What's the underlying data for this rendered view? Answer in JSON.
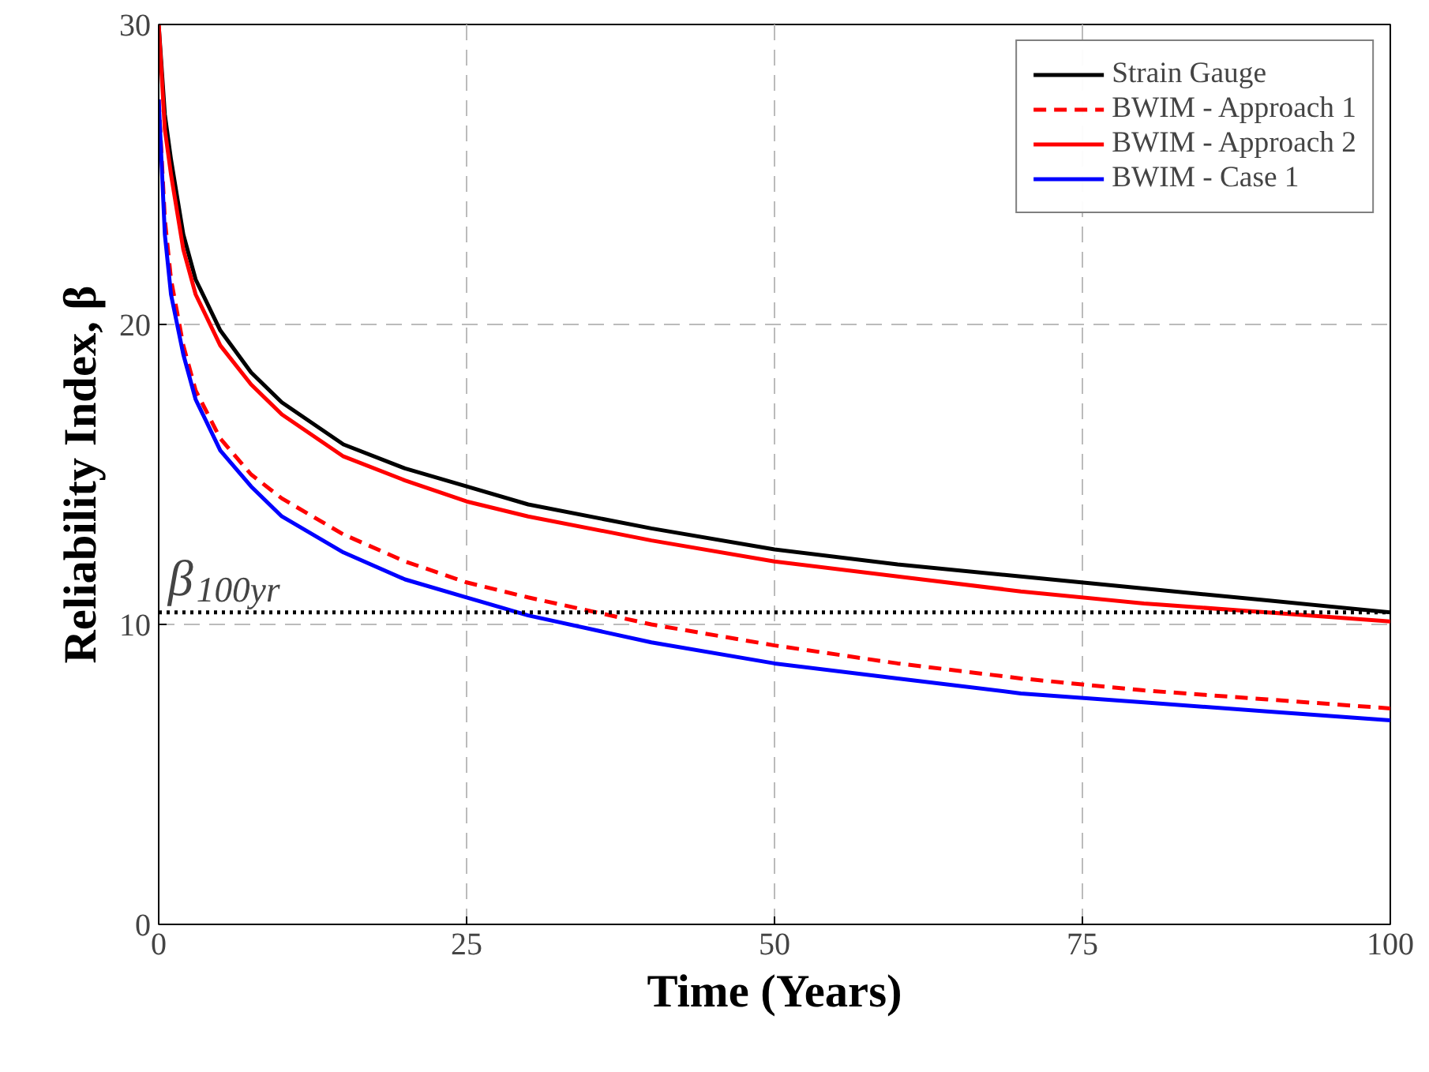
{
  "chart_data": {
    "type": "line",
    "xlabel": "Time (Years)",
    "ylabel": "Reliability Index, β",
    "x": [
      0,
      0.5,
      1,
      2,
      3,
      5,
      7.5,
      10,
      15,
      20,
      25,
      30,
      40,
      50,
      60,
      70,
      80,
      90,
      100
    ],
    "series": [
      {
        "name": "Strain Gauge",
        "color": "#000000",
        "line_style": "solid",
        "values": [
          30,
          27,
          25.5,
          23,
          21.5,
          19.8,
          18.4,
          17.4,
          16,
          15.2,
          14.6,
          14.0,
          13.2,
          12.5,
          12.0,
          11.6,
          11.2,
          10.8,
          10.4
        ]
      },
      {
        "name": "BWIM - Approach 1",
        "color": "#ff0000",
        "line_style": "dashed",
        "values": [
          27.5,
          23.5,
          21.5,
          19.3,
          17.8,
          16.2,
          15,
          14.2,
          13,
          12.1,
          11.4,
          10.9,
          10,
          9.3,
          8.7,
          8.2,
          7.8,
          7.5,
          7.2
        ]
      },
      {
        "name": "BWIM - Approach 2",
        "color": "#ff0000",
        "line_style": "solid",
        "values": [
          30,
          26.5,
          25,
          22.5,
          21,
          19.3,
          18,
          17,
          15.6,
          14.8,
          14.1,
          13.6,
          12.8,
          12.1,
          11.6,
          11.1,
          10.7,
          10.4,
          10.1
        ]
      },
      {
        "name": "BWIM - Case 1",
        "color": "#0000ff",
        "line_style": "solid",
        "values": [
          27.5,
          23,
          21,
          19,
          17.5,
          15.8,
          14.6,
          13.6,
          12.4,
          11.5,
          10.9,
          10.3,
          9.4,
          8.7,
          8.2,
          7.7,
          7.4,
          7.1,
          6.8
        ]
      }
    ],
    "xlim": [
      0,
      100
    ],
    "xticks": [
      0,
      25,
      50,
      75,
      100
    ],
    "ylim": [
      0,
      30
    ],
    "yticks": [
      0,
      10,
      20,
      30
    ],
    "ref_lines": [
      {
        "axis": "y",
        "value": 10.4,
        "label": "β$_{100yr}$",
        "color": "#000000",
        "line_style": "dotted"
      }
    ],
    "grid": true,
    "legend": "top right",
    "marker": "none"
  }
}
